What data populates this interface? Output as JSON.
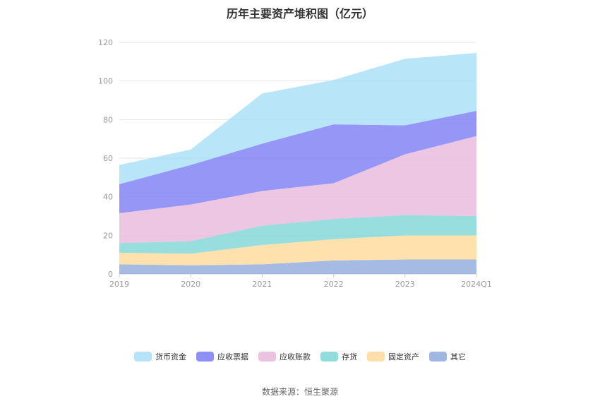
{
  "chart_data": {
    "type": "area",
    "stacked": true,
    "title": "历年主要资产堆积图（亿元）",
    "categories": [
      "2019",
      "2020",
      "2021",
      "2022",
      "2023",
      "2024Q1"
    ],
    "ylim": [
      0,
      120
    ],
    "yticks": [
      "0",
      "20",
      "40",
      "60",
      "80",
      "100",
      "120"
    ],
    "grid": true,
    "legend_position": "bottom",
    "series": [
      {
        "name": "其它",
        "color": "#8faadc",
        "values": [
          5,
          4.5,
          5,
          7,
          7.5,
          7.5
        ]
      },
      {
        "name": "固定资产",
        "color": "#ffd99a",
        "values": [
          6,
          6,
          10,
          11,
          12.5,
          12.5
        ]
      },
      {
        "name": "存货",
        "color": "#7fd6d6",
        "values": [
          5,
          6.5,
          10,
          10.5,
          10.5,
          10
        ]
      },
      {
        "name": "应收账款",
        "color": "#e8b8dc",
        "values": [
          15.5,
          19,
          18,
          18.5,
          31.5,
          41.5
        ]
      },
      {
        "name": "应收票据",
        "color": "#7b7cf2",
        "values": [
          15,
          20.5,
          24.5,
          30.5,
          15,
          13
        ]
      },
      {
        "name": "货币资金",
        "color": "#a8dff7",
        "values": [
          10,
          8,
          26,
          23,
          34.5,
          30
        ]
      }
    ],
    "legend_order": [
      "货币资金",
      "应收票据",
      "应收账款",
      "存货",
      "固定资产",
      "其它"
    ]
  },
  "source": "数据来源：恒生聚源"
}
